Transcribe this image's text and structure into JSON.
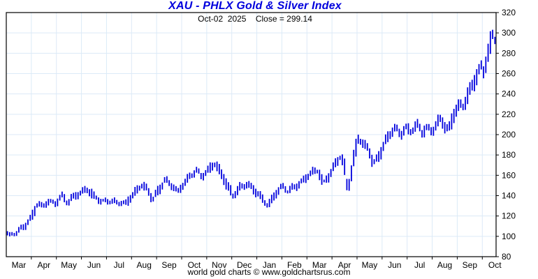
{
  "chart_data": {
    "type": "bar",
    "subtype": "daily-high-low-price-bars",
    "title": "XAU - PHLX Gold & Silver Index",
    "subtitle": "Oct-02  2025    Close = 299.14",
    "close_date": "Oct-02 2025",
    "close_value": 299.14,
    "footer": "world gold charts © www.goldchartsrus.com",
    "x_tick_labels": [
      "Mar",
      "Apr",
      "May",
      "Jun",
      "Jul",
      "Aug",
      "Sep",
      "Oct",
      "Nov",
      "Dec",
      "Jan",
      "Feb",
      "Mar",
      "Apr",
      "May",
      "Jun",
      "Jul",
      "Aug",
      "Sep",
      "Oct"
    ],
    "ylim": [
      80,
      320
    ],
    "y_tick_step": 20,
    "grid": true,
    "legend_position": "none",
    "months_span": 19.55,
    "bars": 215,
    "series": [
      {
        "name": "XAU index price (high-low bars)",
        "anchors_month_price": [
          [
            0.0,
            105
          ],
          [
            0.15,
            100
          ],
          [
            0.45,
            104
          ],
          [
            0.75,
            112
          ],
          [
            1.0,
            119
          ],
          [
            1.25,
            132
          ],
          [
            1.45,
            128
          ],
          [
            1.7,
            135
          ],
          [
            1.95,
            133
          ],
          [
            2.2,
            140
          ],
          [
            2.45,
            132
          ],
          [
            2.75,
            140
          ],
          [
            3.0,
            144
          ],
          [
            3.2,
            147
          ],
          [
            3.5,
            138
          ],
          [
            3.8,
            134
          ],
          [
            4.1,
            136
          ],
          [
            4.4,
            133
          ],
          [
            4.75,
            131
          ],
          [
            5.1,
            143
          ],
          [
            5.4,
            151
          ],
          [
            5.6,
            146
          ],
          [
            5.85,
            136
          ],
          [
            6.1,
            147
          ],
          [
            6.35,
            157
          ],
          [
            6.6,
            150
          ],
          [
            6.85,
            143
          ],
          [
            7.1,
            153
          ],
          [
            7.35,
            161
          ],
          [
            7.6,
            165
          ],
          [
            7.8,
            158
          ],
          [
            8.05,
            164
          ],
          [
            8.3,
            173
          ],
          [
            8.55,
            164
          ],
          [
            8.8,
            150
          ],
          [
            9.05,
            139
          ],
          [
            9.35,
            149
          ],
          [
            9.6,
            152
          ],
          [
            9.85,
            146
          ],
          [
            10.1,
            139
          ],
          [
            10.45,
            131
          ],
          [
            10.75,
            142
          ],
          [
            11.0,
            148
          ],
          [
            11.25,
            144
          ],
          [
            11.55,
            150
          ],
          [
            11.85,
            155
          ],
          [
            12.2,
            162
          ],
          [
            12.45,
            165
          ],
          [
            12.65,
            153
          ],
          [
            12.9,
            161
          ],
          [
            13.15,
            171
          ],
          [
            13.35,
            179
          ],
          [
            13.5,
            168
          ],
          [
            13.62,
            148
          ],
          [
            13.75,
            160
          ],
          [
            13.9,
            183
          ],
          [
            14.05,
            197
          ],
          [
            14.25,
            190
          ],
          [
            14.45,
            186
          ],
          [
            14.65,
            172
          ],
          [
            14.85,
            179
          ],
          [
            15.1,
            192
          ],
          [
            15.35,
            201
          ],
          [
            15.55,
            206
          ],
          [
            15.75,
            200
          ],
          [
            15.95,
            208
          ],
          [
            16.15,
            203
          ],
          [
            16.4,
            209
          ],
          [
            16.6,
            201
          ],
          [
            16.8,
            207
          ],
          [
            17.0,
            204
          ],
          [
            17.2,
            211
          ],
          [
            17.35,
            216
          ],
          [
            17.5,
            206
          ],
          [
            17.65,
            204
          ],
          [
            17.8,
            214
          ],
          [
            17.95,
            224
          ],
          [
            18.1,
            231
          ],
          [
            18.25,
            228
          ],
          [
            18.4,
            237
          ],
          [
            18.55,
            245
          ],
          [
            18.7,
            252
          ],
          [
            18.85,
            261
          ],
          [
            18.95,
            268
          ],
          [
            19.05,
            263
          ],
          [
            19.15,
            272
          ],
          [
            19.25,
            282
          ],
          [
            19.32,
            290
          ],
          [
            19.4,
            297
          ],
          [
            19.45,
            303
          ],
          [
            19.5,
            293
          ],
          [
            19.55,
            299.14
          ]
        ]
      }
    ],
    "colors": {
      "bars": "#0000dd",
      "title": "#0000dd",
      "grid": "#dceaf7",
      "axis": "#000000",
      "text": "#000000",
      "background": "#ffffff"
    }
  }
}
